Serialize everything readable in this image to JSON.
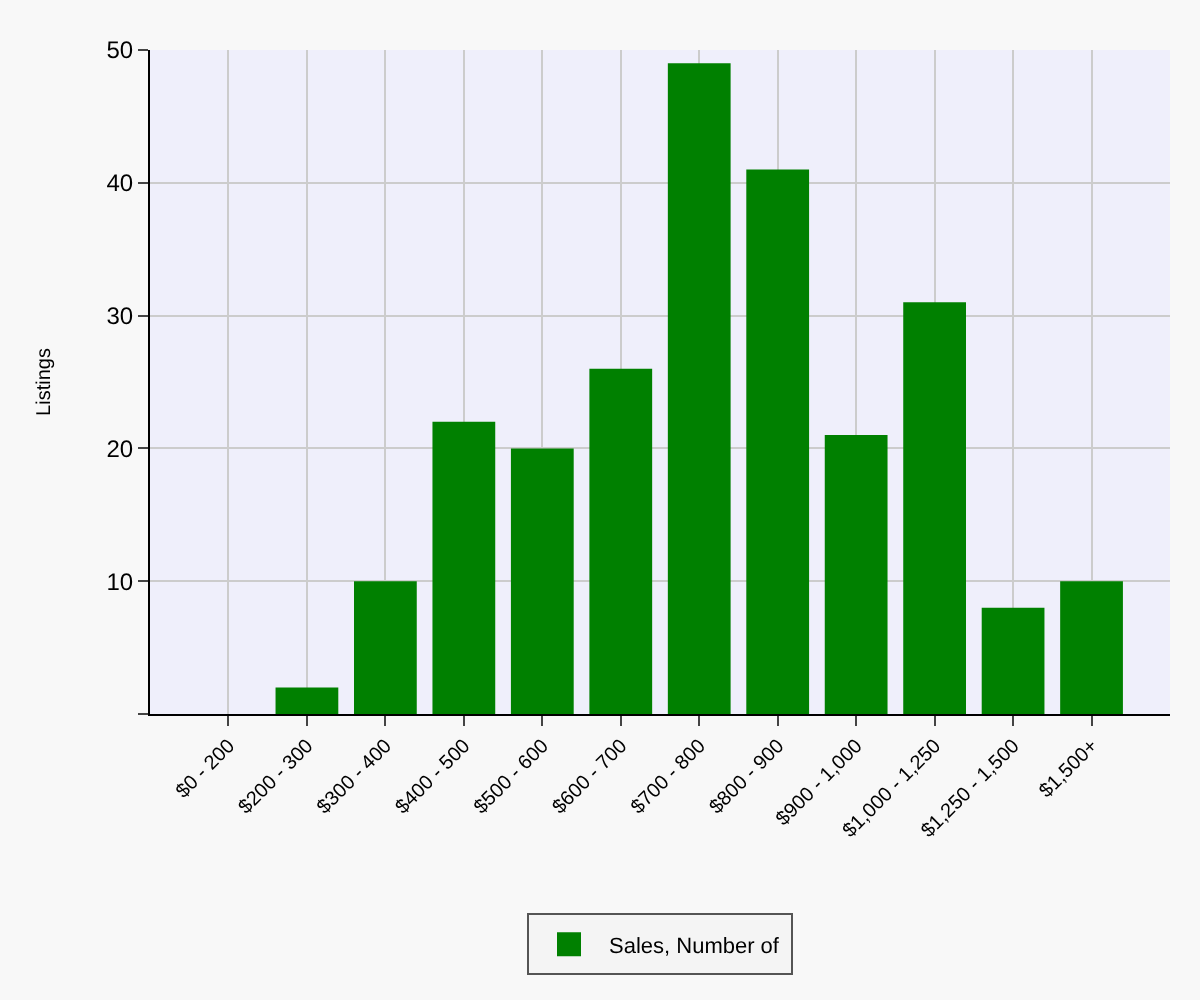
{
  "chart_data": {
    "type": "bar",
    "ylabel": "Listings",
    "categories": [
      "$0 - 200",
      "$200 - 300",
      "$300 - 400",
      "$400 - 500",
      "$500 - 600",
      "$600 - 700",
      "$700 - 800",
      "$800 - 900",
      "$900 - 1,000",
      "$1,000 - 1,250",
      "$1,250 - 1,500",
      "$1,500+"
    ],
    "series": [
      {
        "name": "Sales, Number of",
        "color": "#008000",
        "values": [
          0,
          2,
          10,
          22,
          20,
          26,
          49,
          41,
          21,
          31,
          8,
          10
        ]
      }
    ],
    "ylim": [
      0,
      50
    ],
    "yticks": [
      {
        "value": 0,
        "label": null
      },
      10,
      20,
      30,
      40,
      50
    ],
    "grid": true,
    "legend": "bottom"
  }
}
